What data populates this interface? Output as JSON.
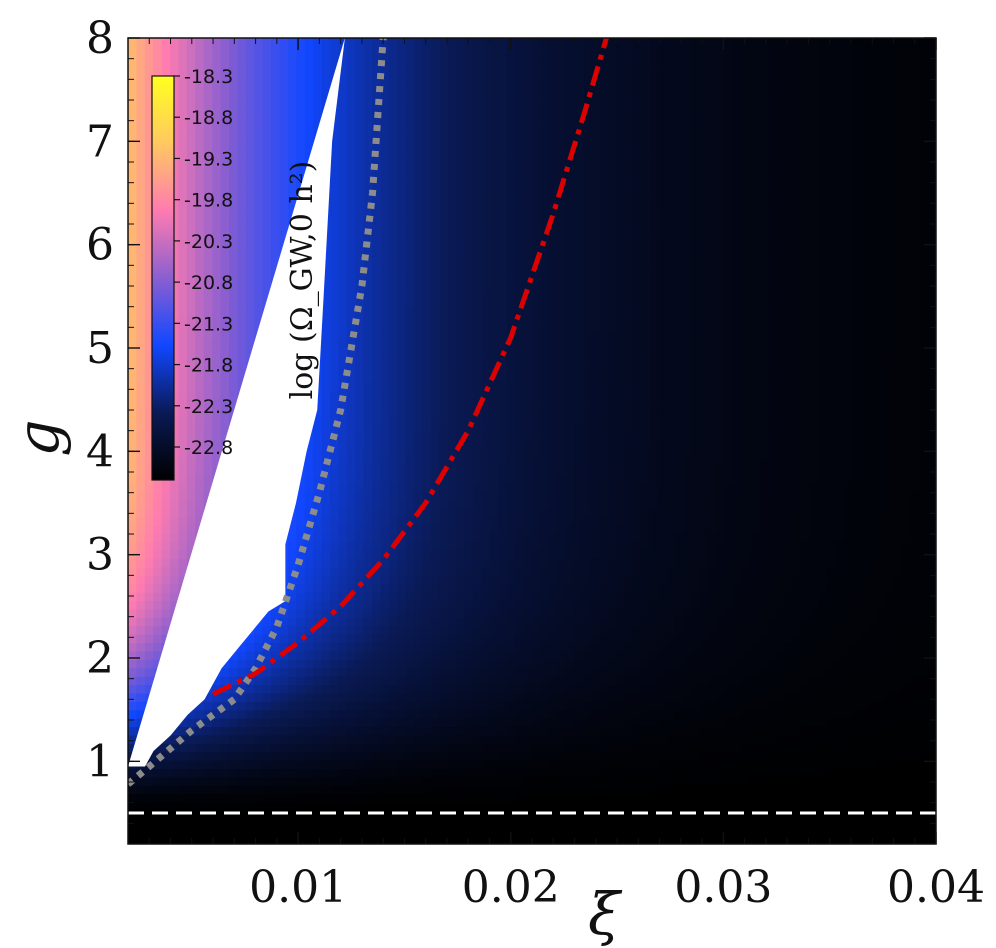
{
  "chart_data": {
    "type": "heatmap",
    "title": "",
    "xlabel": "ξ",
    "ylabel": "g",
    "xlim": [
      0.002,
      0.04
    ],
    "ylim": [
      0.2,
      8.0
    ],
    "x_ticks": [
      0.01,
      0.02,
      0.03,
      0.04
    ],
    "x_tick_labels": [
      "0.01",
      "0.02",
      "0.03",
      "0.04"
    ],
    "y_ticks": [
      1,
      2,
      3,
      4,
      5,
      6,
      7,
      8
    ],
    "y_tick_labels": [
      "1",
      "2",
      "3",
      "4",
      "5",
      "6",
      "7",
      "8"
    ],
    "grid": false,
    "colormap": [
      "#000000",
      "#0a1a55",
      "#1147ff",
      "#8a5fd0",
      "#ff7bb0",
      "#ffc860",
      "#ffff20"
    ],
    "colorbar": {
      "label": "log (Ω_GW,0 h²)",
      "range": [
        -23.2,
        -18.3
      ],
      "ticks": [
        -18.3,
        -18.8,
        -19.3,
        -19.8,
        -20.3,
        -20.8,
        -21.3,
        -21.8,
        -22.3,
        -22.8
      ],
      "tick_labels": [
        "-18.3",
        "-18.8",
        "-19.3",
        "-19.8",
        "-20.3",
        "-20.8",
        "-21.3",
        "-21.8",
        "-22.3",
        "-22.8"
      ]
    },
    "masked_region_boundary": [
      [
        0.002,
        0.95
      ],
      [
        0.0028,
        0.95
      ],
      [
        0.0032,
        1.1
      ],
      [
        0.004,
        1.25
      ],
      [
        0.0048,
        1.45
      ],
      [
        0.0056,
        1.6
      ],
      [
        0.0064,
        1.9
      ],
      [
        0.0072,
        2.1
      ],
      [
        0.008,
        2.3
      ],
      [
        0.0086,
        2.45
      ],
      [
        0.0094,
        2.55
      ],
      [
        0.0094,
        3.1
      ],
      [
        0.0099,
        3.5
      ],
      [
        0.0104,
        4.0
      ],
      [
        0.0109,
        4.4
      ],
      [
        0.0112,
        5.5
      ],
      [
        0.0116,
        7.0
      ],
      [
        0.0122,
        8.0
      ]
    ],
    "lines": [
      {
        "style": "dotted",
        "color": "#8c8c8c",
        "points": [
          [
            0.002,
            0.78
          ],
          [
            0.003,
            0.95
          ],
          [
            0.005,
            1.3
          ],
          [
            0.007,
            1.6
          ],
          [
            0.008,
            1.9
          ],
          [
            0.009,
            2.3
          ],
          [
            0.01,
            2.9
          ],
          [
            0.011,
            3.6
          ],
          [
            0.012,
            4.4
          ],
          [
            0.013,
            5.6
          ],
          [
            0.0135,
            6.5
          ],
          [
            0.014,
            8.0
          ]
        ]
      },
      {
        "style": "dash-dot",
        "color": "#dd0000",
        "points": [
          [
            0.006,
            1.65
          ],
          [
            0.008,
            1.85
          ],
          [
            0.01,
            2.15
          ],
          [
            0.012,
            2.5
          ],
          [
            0.014,
            2.95
          ],
          [
            0.016,
            3.5
          ],
          [
            0.018,
            4.2
          ],
          [
            0.02,
            5.1
          ],
          [
            0.022,
            6.3
          ],
          [
            0.0235,
            7.3
          ],
          [
            0.0245,
            8.0
          ]
        ]
      },
      {
        "style": "dashed",
        "color": "#ffffff",
        "points": [
          [
            0.002,
            0.5
          ],
          [
            0.04,
            0.5
          ]
        ]
      }
    ]
  }
}
